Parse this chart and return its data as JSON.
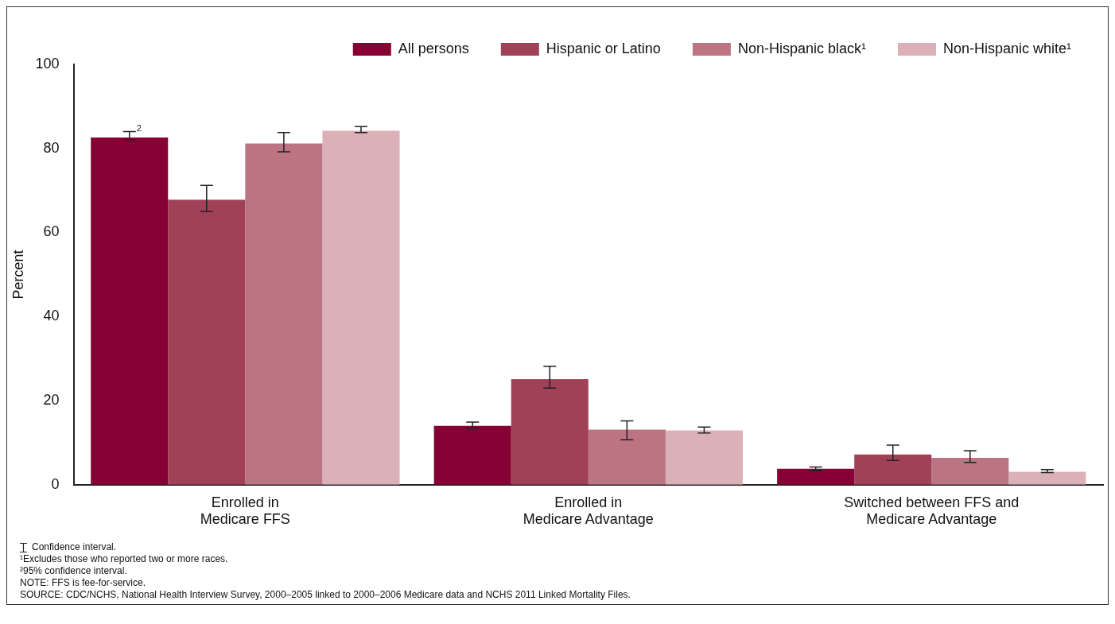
{
  "chart_data": {
    "type": "bar",
    "ylabel": "Percent",
    "categories": [
      "Enrolled in\nMedicare FFS",
      "Enrolled in\nMedicare Advantage",
      "Switched between FFS and\nMedicare Advantage"
    ],
    "series": [
      {
        "name": "All persons",
        "color": "#860033",
        "values": [
          82.6,
          14.0,
          3.8
        ],
        "errors": [
          [
            82.1,
            84.0
          ],
          [
            13.5,
            14.9
          ],
          [
            3.4,
            4.2
          ]
        ]
      },
      {
        "name": "Hispanic or Latino",
        "color": "#a04158",
        "values": [
          67.8,
          25.1,
          7.2
        ],
        "errors": [
          [
            65.0,
            71.2
          ],
          [
            23.0,
            28.2
          ],
          [
            5.8,
            9.4
          ]
        ]
      },
      {
        "name": "Non-Hispanic black¹",
        "color": "#bc7482",
        "values": [
          81.2,
          13.1,
          6.4
        ],
        "errors": [
          [
            79.2,
            83.8
          ],
          [
            10.7,
            15.2
          ],
          [
            5.3,
            8.1
          ]
        ]
      },
      {
        "name": "Non-Hispanic white¹",
        "color": "#dbb1b7",
        "values": [
          84.2,
          12.9,
          3.1
        ],
        "errors": [
          [
            83.8,
            85.2
          ],
          [
            12.3,
            13.7
          ],
          [
            2.9,
            3.6
          ]
        ]
      }
    ],
    "ylim": [
      0,
      100
    ],
    "yticks": [
      0,
      20,
      40,
      60,
      80,
      100
    ],
    "grid": false,
    "legend": "top right",
    "annotations": [
      "2",
      "Confidence interval.",
      "¹Excludes those who reported two or more races.",
      "²95% confidence interval.",
      "NOTE: FFS is fee-for-service.",
      "SOURCE: CDC/NCHS, National Health Interview Survey, 2000–2005 linked to 2000–2006 Medicare data and NCHS 2011 Linked Mortality Files."
    ]
  }
}
